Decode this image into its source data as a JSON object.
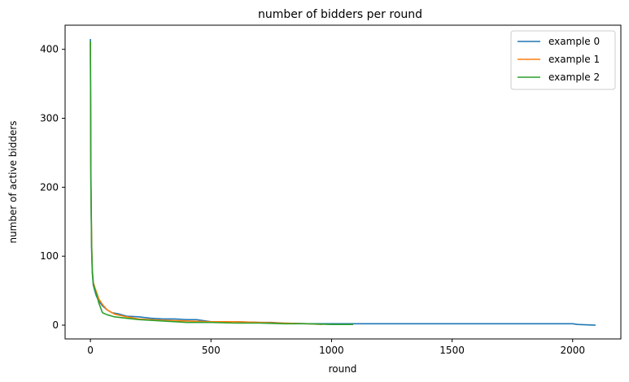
{
  "chart_data": {
    "type": "line",
    "title": "number of bidders per round",
    "xlabel": "round",
    "ylabel": "number of active bidders",
    "xlim": [
      -105,
      2200
    ],
    "ylim": [
      -20,
      435
    ],
    "xticks": [
      0,
      500,
      1000,
      1500,
      2000
    ],
    "yticks": [
      0,
      100,
      200,
      300,
      400
    ],
    "grid": false,
    "legend": "top-right",
    "series": [
      {
        "name": "example 0",
        "color": "#1f77b4",
        "x": [
          0,
          2,
          5,
          8,
          12,
          18,
          25,
          35,
          50,
          70,
          90,
          120,
          150,
          200,
          250,
          300,
          350,
          400,
          440,
          500,
          600,
          700,
          750,
          800,
          900,
          1000,
          1200,
          1400,
          1600,
          1800,
          2000,
          2020,
          2095
        ],
        "y": [
          415,
          200,
          110,
          75,
          58,
          50,
          42,
          35,
          28,
          22,
          18,
          16,
          13,
          12,
          10,
          9,
          9,
          8,
          8,
          5,
          5,
          4,
          4,
          3,
          2,
          2,
          2,
          2,
          2,
          2,
          2,
          1,
          0
        ]
      },
      {
        "name": "example 1",
        "color": "#ff7f0e",
        "x": [
          0,
          2,
          5,
          8,
          12,
          18,
          25,
          35,
          50,
          70,
          100,
          150,
          200,
          300,
          400,
          500,
          600,
          700,
          800,
          900,
          960
        ],
        "y": [
          410,
          220,
          120,
          80,
          62,
          55,
          48,
          38,
          30,
          22,
          16,
          12,
          9,
          7,
          6,
          5,
          5,
          4,
          3,
          2,
          1
        ]
      },
      {
        "name": "example 2",
        "color": "#2ca02c",
        "x": [
          0,
          2,
          5,
          8,
          12,
          18,
          25,
          35,
          50,
          70,
          100,
          150,
          200,
          300,
          400,
          500,
          600,
          700,
          800,
          900,
          1000,
          1090
        ],
        "y": [
          412,
          210,
          115,
          78,
          60,
          52,
          45,
          32,
          18,
          15,
          12,
          10,
          8,
          6,
          4,
          4,
          3,
          3,
          2,
          2,
          1,
          1
        ]
      }
    ]
  }
}
